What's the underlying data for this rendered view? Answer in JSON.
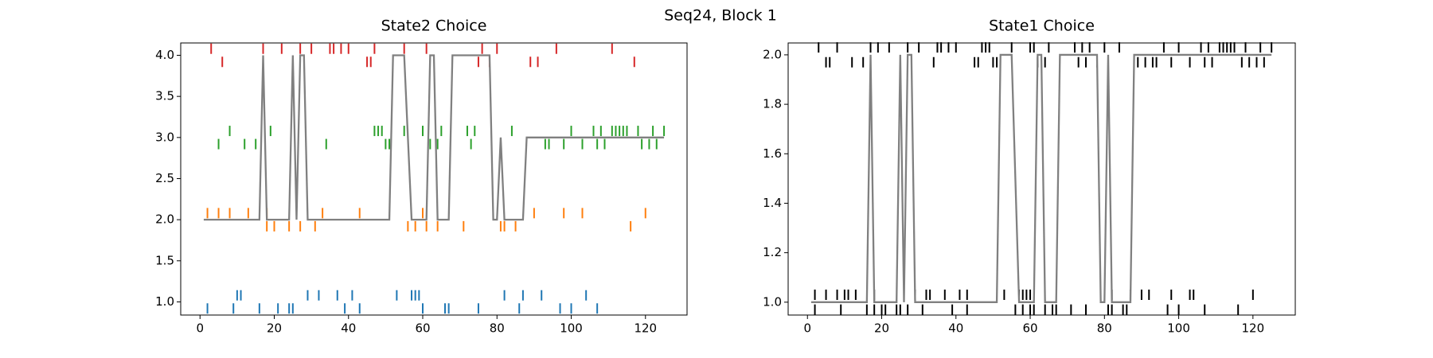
{
  "title": "Seq24, Block 1",
  "chart_data": [
    {
      "type": "line",
      "title": "State2 Choice",
      "xlim": [
        -5.2,
        131.2
      ],
      "ylim": [
        0.84,
        4.15
      ],
      "xticks": [
        0,
        20,
        40,
        60,
        80,
        100,
        120
      ],
      "yticks": [
        {
          "value": 1.0,
          "label": "1.0"
        },
        {
          "value": 1.5,
          "label": "1.5"
        },
        {
          "value": 2.0,
          "label": "2.0"
        },
        {
          "value": 2.5,
          "label": "2.5"
        },
        {
          "value": 3.0,
          "label": "3.0"
        },
        {
          "value": 3.5,
          "label": "3.5"
        },
        {
          "value": 4.0,
          "label": "4.0"
        }
      ],
      "series": [
        {
          "marker": "tick",
          "color": "#d62728",
          "x": [
            3,
            17,
            22,
            27,
            30,
            35,
            36,
            38,
            40,
            47,
            55,
            61,
            76,
            80,
            96,
            111,
            6,
            45,
            46,
            75,
            78,
            89,
            91,
            117
          ],
          "values": [
            4.08,
            4.08,
            4.08,
            4.08,
            4.08,
            4.08,
            4.08,
            4.08,
            4.08,
            4.08,
            4.08,
            4.08,
            4.08,
            4.08,
            4.08,
            4.08,
            3.92,
            3.92,
            3.92,
            3.92,
            3.92,
            3.92,
            3.92,
            3.92
          ]
        },
        {
          "marker": "tick",
          "color": "#2ca02c",
          "x": [
            8,
            19,
            47,
            48,
            49,
            55,
            60,
            65,
            72,
            74,
            84,
            100,
            106,
            108,
            111,
            112,
            113,
            114,
            115,
            118,
            122,
            125,
            5,
            12,
            15,
            34,
            50,
            51,
            62,
            64,
            73,
            93,
            94,
            98,
            103,
            107,
            109,
            119,
            121,
            123
          ],
          "values": [
            3.08,
            3.08,
            3.08,
            3.08,
            3.08,
            3.08,
            3.08,
            3.08,
            3.08,
            3.08,
            3.08,
            3.08,
            3.08,
            3.08,
            3.08,
            3.08,
            3.08,
            3.08,
            3.08,
            3.08,
            3.08,
            3.08,
            2.92,
            2.92,
            2.92,
            2.92,
            2.92,
            2.92,
            2.92,
            2.92,
            2.92,
            2.92,
            2.92,
            2.92,
            2.92,
            2.92,
            2.92,
            2.92,
            2.92,
            2.92
          ]
        },
        {
          "marker": "tick",
          "color": "#ff7f0e",
          "x": [
            2,
            5,
            8,
            13,
            18,
            33,
            43,
            60,
            90,
            98,
            103,
            120,
            18,
            20,
            24,
            27,
            31,
            56,
            58,
            61,
            64,
            71,
            81,
            82,
            85,
            116
          ],
          "values": [
            2.08,
            2.08,
            2.08,
            2.08,
            2.08,
            2.08,
            2.08,
            2.08,
            2.08,
            2.08,
            2.08,
            2.08,
            1.92,
            1.92,
            1.92,
            1.92,
            1.92,
            1.92,
            1.92,
            1.92,
            1.92,
            1.92,
            1.92,
            1.92,
            1.92,
            1.92
          ]
        },
        {
          "marker": "tick",
          "color": "#1f77b4",
          "x": [
            10,
            11,
            29,
            32,
            37,
            41,
            53,
            57,
            58,
            59,
            82,
            87,
            92,
            104,
            2,
            9,
            16,
            21,
            24,
            25,
            39,
            43,
            60,
            66,
            67,
            75,
            86,
            97,
            100,
            107
          ],
          "values": [
            1.08,
            1.08,
            1.08,
            1.08,
            1.08,
            1.08,
            1.08,
            1.08,
            1.08,
            1.08,
            1.08,
            1.08,
            1.08,
            1.08,
            0.92,
            0.92,
            0.92,
            0.92,
            0.92,
            0.92,
            0.92,
            0.92,
            0.92,
            0.92,
            0.92,
            0.92,
            0.92,
            0.92,
            0.92,
            0.92
          ]
        },
        {
          "marker": "line",
          "color": "#808080",
          "x": [
            1,
            16,
            17,
            18,
            24,
            25,
            26,
            27,
            28,
            29,
            51,
            52,
            55,
            57,
            61,
            62,
            63,
            64,
            67,
            68,
            78,
            79,
            80,
            81,
            82,
            87,
            88,
            125
          ],
          "values": [
            2,
            2,
            4,
            2,
            2,
            4,
            2,
            4,
            4,
            2,
            2,
            4,
            4,
            2,
            2,
            4,
            4,
            2,
            2,
            4,
            4,
            2,
            2,
            3,
            2,
            2,
            3,
            3
          ]
        }
      ]
    },
    {
      "type": "line",
      "title": "State1 Choice",
      "xlim": [
        -5.2,
        131.4
      ],
      "ylim": [
        0.948,
        2.048
      ],
      "xticks": [
        0,
        20,
        40,
        60,
        80,
        100,
        120
      ],
      "yticks": [
        {
          "value": 1.0,
          "label": "1.0"
        },
        {
          "value": 1.2,
          "label": "1.2"
        },
        {
          "value": 1.4,
          "label": "1.4"
        },
        {
          "value": 1.6,
          "label": "1.6"
        },
        {
          "value": 1.8,
          "label": "1.8"
        },
        {
          "value": 2.0,
          "label": "2.0"
        }
      ],
      "series": [
        {
          "marker": "tick",
          "color": "#000000",
          "x": [
            3,
            8,
            17,
            19,
            22,
            27,
            30,
            35,
            36,
            38,
            40,
            47,
            48,
            49,
            55,
            60,
            61,
            65,
            72,
            74,
            76,
            80,
            84,
            96,
            100,
            106,
            108,
            111,
            112,
            113,
            114,
            115,
            118,
            122,
            125,
            5,
            6,
            12,
            15,
            34,
            45,
            46,
            50,
            51,
            62,
            64,
            73,
            75,
            78,
            89,
            91,
            93,
            94,
            98,
            103,
            107,
            109,
            117,
            119,
            121,
            123
          ],
          "values": [
            2.03,
            2.03,
            2.03,
            2.03,
            2.03,
            2.03,
            2.03,
            2.03,
            2.03,
            2.03,
            2.03,
            2.03,
            2.03,
            2.03,
            2.03,
            2.03,
            2.03,
            2.03,
            2.03,
            2.03,
            2.03,
            2.03,
            2.03,
            2.03,
            2.03,
            2.03,
            2.03,
            2.03,
            2.03,
            2.03,
            2.03,
            2.03,
            2.03,
            2.03,
            2.03,
            1.97,
            1.97,
            1.97,
            1.97,
            1.97,
            1.97,
            1.97,
            1.97,
            1.97,
            1.97,
            1.97,
            1.97,
            1.97,
            1.97,
            1.97,
            1.97,
            1.97,
            1.97,
            1.97,
            1.97,
            1.97,
            1.97,
            1.97,
            1.97,
            1.97,
            1.97
          ]
        },
        {
          "marker": "tick",
          "color": "#000000",
          "x": [
            2,
            5,
            8,
            10,
            11,
            13,
            18,
            29,
            32,
            33,
            37,
            41,
            43,
            53,
            57,
            58,
            59,
            60,
            82,
            87,
            90,
            92,
            98,
            103,
            104,
            120,
            2,
            9,
            16,
            18,
            20,
            21,
            24,
            25,
            27,
            31,
            39,
            43,
            56,
            58,
            60,
            61,
            64,
            66,
            67,
            71,
            75,
            81,
            82,
            85,
            86,
            97,
            100,
            107,
            116
          ],
          "values": [
            1.03,
            1.03,
            1.03,
            1.03,
            1.03,
            1.03,
            1.03,
            1.03,
            1.03,
            1.03,
            1.03,
            1.03,
            1.03,
            1.03,
            1.03,
            1.03,
            1.03,
            1.03,
            1.03,
            1.03,
            1.03,
            1.03,
            1.03,
            1.03,
            1.03,
            1.03,
            0.97,
            0.97,
            0.97,
            0.97,
            0.97,
            0.97,
            0.97,
            0.97,
            0.97,
            0.97,
            0.97,
            0.97,
            0.97,
            0.97,
            0.97,
            0.97,
            0.97,
            0.97,
            0.97,
            0.97,
            0.97,
            0.97,
            0.97,
            0.97,
            0.97,
            0.97,
            0.97,
            0.97,
            0.97
          ]
        },
        {
          "marker": "line",
          "color": "#808080",
          "x": [
            1,
            16,
            17,
            18,
            24,
            25,
            26,
            27,
            28,
            29,
            51,
            52,
            55,
            57,
            61,
            62,
            63,
            64,
            67,
            68,
            78,
            79,
            80,
            81,
            82,
            87,
            88,
            125
          ],
          "values": [
            1,
            1,
            2,
            1,
            1,
            2,
            1,
            2,
            2,
            1,
            1,
            2,
            2,
            1,
            1,
            2,
            2,
            1,
            1,
            2,
            2,
            1,
            1,
            2,
            1,
            1,
            2,
            2
          ]
        }
      ]
    }
  ]
}
